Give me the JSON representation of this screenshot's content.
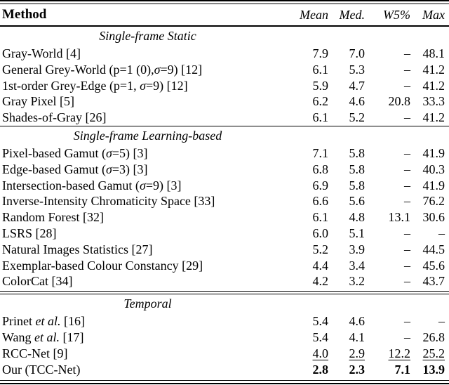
{
  "table": {
    "columns": {
      "method": "Method",
      "mean": "Mean",
      "med": "Med.",
      "w5": "W5%",
      "max": "Max"
    },
    "missing_marker": "–",
    "sections": [
      {
        "title": "Single-frame Static",
        "rule": "none",
        "rows": [
          {
            "method": [
              {
                "t": "Gray-World [4]"
              }
            ],
            "values": [
              "7.9",
              "7.0",
              "–",
              "48.1"
            ],
            "emph": "none"
          },
          {
            "method": [
              {
                "t": "General Grey-World (p=1 (0),"
              },
              {
                "t": "σ",
                "i": true
              },
              {
                "t": "=9) [12]"
              }
            ],
            "values": [
              "6.1",
              "5.3",
              "–",
              "41.2"
            ],
            "emph": "none"
          },
          {
            "method": [
              {
                "t": "1st-order Grey-Edge (p=1, "
              },
              {
                "t": "σ",
                "i": true
              },
              {
                "t": "=9) [12]"
              }
            ],
            "values": [
              "5.9",
              "4.7",
              "–",
              "41.2"
            ],
            "emph": "none"
          },
          {
            "method": [
              {
                "t": "Gray Pixel [5]"
              }
            ],
            "values": [
              "6.2",
              "4.6",
              "20.8",
              "33.3"
            ],
            "emph": "none"
          },
          {
            "method": [
              {
                "t": "Shades-of-Gray [26]"
              }
            ],
            "values": [
              "6.1",
              "5.2",
              "–",
              "41.2"
            ],
            "emph": "none"
          }
        ]
      },
      {
        "title": "Single-frame Learning-based",
        "rule": "single",
        "rows": [
          {
            "method": [
              {
                "t": "Pixel-based Gamut ("
              },
              {
                "t": "σ",
                "i": true
              },
              {
                "t": "=5) [3]"
              }
            ],
            "values": [
              "7.1",
              "5.8",
              "–",
              "41.9"
            ],
            "emph": "none"
          },
          {
            "method": [
              {
                "t": "Edge-based Gamut ("
              },
              {
                "t": "σ",
                "i": true
              },
              {
                "t": "=3) [3]"
              }
            ],
            "values": [
              "6.8",
              "5.8",
              "–",
              "40.3"
            ],
            "emph": "none"
          },
          {
            "method": [
              {
                "t": "Intersection-based Gamut ("
              },
              {
                "t": "σ",
                "i": true
              },
              {
                "t": "=9) [3]"
              }
            ],
            "values": [
              "6.9",
              "5.8",
              "–",
              "41.9"
            ],
            "emph": "none"
          },
          {
            "method": [
              {
                "t": "Inverse-Intensity Chromaticity Space [33]"
              }
            ],
            "values": [
              "6.6",
              "5.6",
              "–",
              "76.2"
            ],
            "emph": "none"
          },
          {
            "method": [
              {
                "t": "Random Forest [32]"
              }
            ],
            "values": [
              "6.1",
              "4.8",
              "13.1",
              "30.6"
            ],
            "emph": "none"
          },
          {
            "method": [
              {
                "t": "LSRS [28]"
              }
            ],
            "values": [
              "6.0",
              "5.1",
              "–",
              "–"
            ],
            "emph": "none"
          },
          {
            "method": [
              {
                "t": "Natural Images Statistics [27]"
              }
            ],
            "values": [
              "5.2",
              "3.9",
              "–",
              "44.5"
            ],
            "emph": "none"
          },
          {
            "method": [
              {
                "t": "Exemplar-based Colour Constancy [29]"
              }
            ],
            "values": [
              "4.4",
              "3.4",
              "–",
              "45.6"
            ],
            "emph": "none"
          },
          {
            "method": [
              {
                "t": "ColorCat [34]"
              }
            ],
            "values": [
              "4.2",
              "3.2",
              "–",
              "43.7"
            ],
            "emph": "none"
          }
        ]
      },
      {
        "title": "Temporal",
        "rule": "double",
        "rows": [
          {
            "method": [
              {
                "t": "Prinet "
              },
              {
                "t": "et al.",
                "i": true
              },
              {
                "t": " [16]"
              }
            ],
            "values": [
              "5.4",
              "4.6",
              "–",
              "–"
            ],
            "emph": "none"
          },
          {
            "method": [
              {
                "t": "Wang "
              },
              {
                "t": "et al.",
                "i": true
              },
              {
                "t": " [17]"
              }
            ],
            "values": [
              "5.4",
              "4.1",
              "–",
              "26.8"
            ],
            "emph": "none"
          },
          {
            "method": [
              {
                "t": "RCC-Net [9]"
              }
            ],
            "values": [
              "4.0",
              "2.9",
              "12.2",
              "25.2"
            ],
            "emph": "underline"
          },
          {
            "method": [
              {
                "t": "Our (TCC-Net)"
              }
            ],
            "values": [
              "2.8",
              "2.3",
              "7.1",
              "13.9"
            ],
            "emph": "bold"
          }
        ]
      }
    ],
    "text_color": "#000000",
    "background_color": "#ffffff"
  }
}
